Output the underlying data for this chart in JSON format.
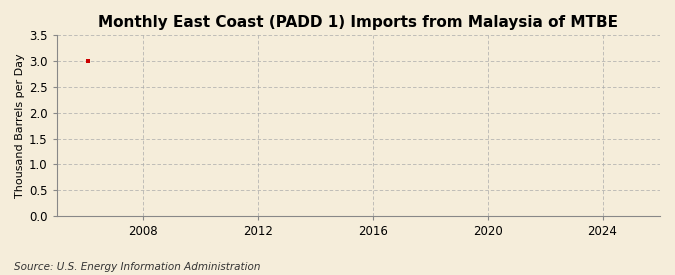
{
  "title": "Monthly East Coast (PADD 1) Imports from Malaysia of MTBE",
  "ylabel": "Thousand Barrels per Day",
  "source": "Source: U.S. Energy Information Administration",
  "background_color": "#f5edda",
  "plot_background_color": "#f5edda",
  "grid_color": "#aaaaaa",
  "data_x": [
    2006.1
  ],
  "data_y": [
    3.0
  ],
  "dot_color": "#cc0000",
  "xlim": [
    2005.0,
    2026.0
  ],
  "ylim": [
    0.0,
    3.5
  ],
  "xticks": [
    2008,
    2012,
    2016,
    2020,
    2024
  ],
  "yticks": [
    0.0,
    0.5,
    1.0,
    1.5,
    2.0,
    2.5,
    3.0,
    3.5
  ],
  "title_fontsize": 11,
  "label_fontsize": 8,
  "tick_fontsize": 8.5,
  "source_fontsize": 7.5
}
